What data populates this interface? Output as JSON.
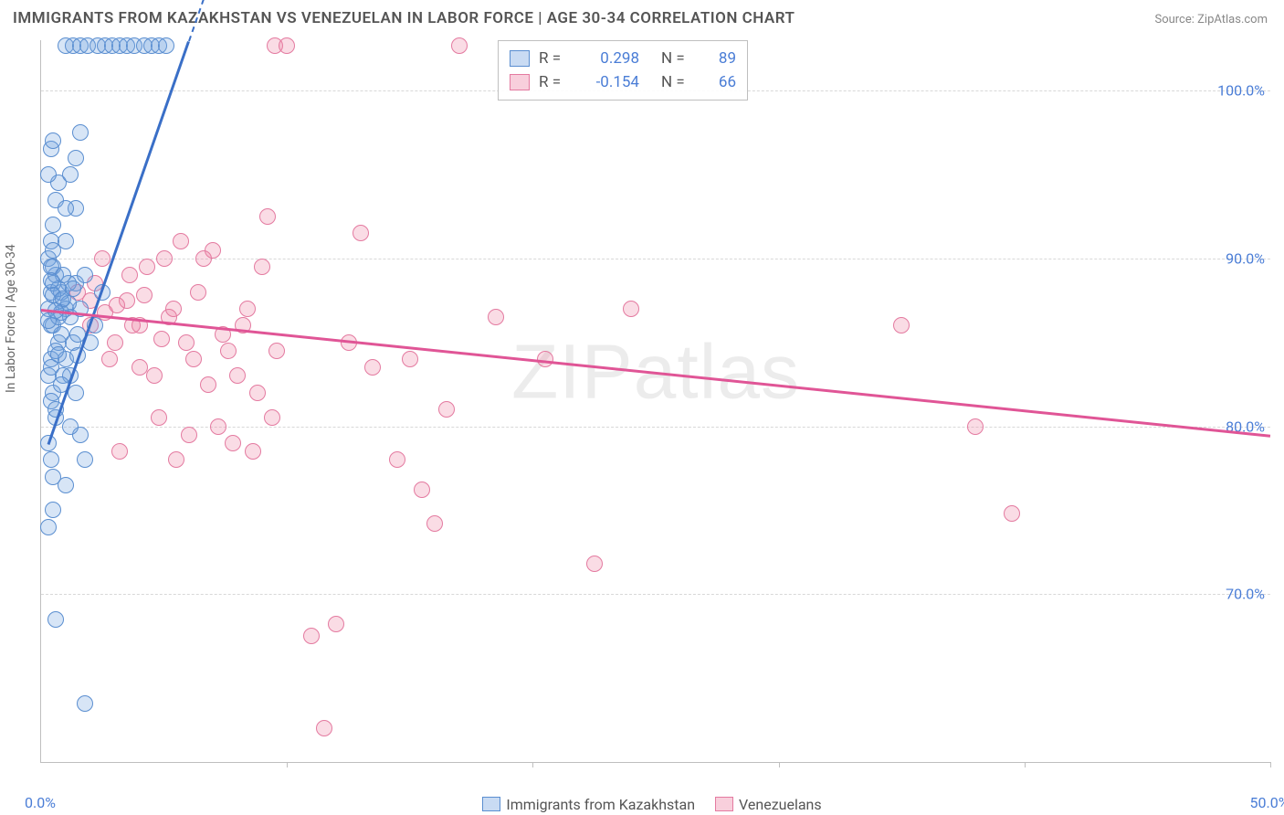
{
  "title": "IMMIGRANTS FROM KAZAKHSTAN VS VENEZUELAN IN LABOR FORCE | AGE 30-34 CORRELATION CHART",
  "source": "Source: ZipAtlas.com",
  "watermark": "ZIPatlas",
  "ylabel": "In Labor Force | Age 30-34",
  "chart": {
    "type": "scatter",
    "xlim": [
      0,
      50
    ],
    "ylim": [
      60,
      103
    ],
    "yticks": [
      70,
      80,
      90,
      100
    ],
    "ytick_labels": [
      "70.0%",
      "80.0%",
      "90.0%",
      "100.0%"
    ],
    "xticks": [
      0,
      10,
      20,
      30,
      40,
      50
    ],
    "xtick_labels_shown": {
      "0": "0.0%",
      "50": "50.0%"
    },
    "background_color": "#ffffff",
    "grid_color": "#d8d8d8",
    "series": {
      "kazakhstan": {
        "label": "Immigrants from Kazakhstan",
        "color_fill": "rgba(112,160,224,0.28)",
        "color_stroke": "#5a8ed0",
        "R": "0.298",
        "N": "89",
        "trend": {
          "x1": 0.3,
          "y1": 79,
          "x2": 6.0,
          "y2": 103,
          "color": "#3a6fc7"
        },
        "points": [
          [
            0.3,
            87
          ],
          [
            0.4,
            88
          ],
          [
            0.5,
            86
          ],
          [
            0.6,
            89
          ],
          [
            0.7,
            85
          ],
          [
            0.8,
            87.5
          ],
          [
            0.3,
            90
          ],
          [
            0.4,
            91
          ],
          [
            0.5,
            92
          ],
          [
            0.6,
            93.5
          ],
          [
            0.7,
            94.5
          ],
          [
            0.3,
            95
          ],
          [
            0.4,
            96.5
          ],
          [
            0.5,
            97
          ],
          [
            0.3,
            83
          ],
          [
            0.4,
            84
          ],
          [
            0.5,
            82
          ],
          [
            0.6,
            80.5
          ],
          [
            0.3,
            79
          ],
          [
            0.4,
            78
          ],
          [
            0.5,
            77
          ],
          [
            0.3,
            74
          ],
          [
            0.8,
            88
          ],
          [
            1.0,
            87
          ],
          [
            1.2,
            86.5
          ],
          [
            1.4,
            88.5
          ],
          [
            1.6,
            87
          ],
          [
            1.8,
            89
          ],
          [
            2.0,
            85
          ],
          [
            1.0,
            84
          ],
          [
            1.2,
            83
          ],
          [
            1.4,
            82
          ],
          [
            1.6,
            79.5
          ],
          [
            1.8,
            78
          ],
          [
            1.0,
            91
          ],
          [
            1.4,
            93
          ],
          [
            1.0,
            102.7
          ],
          [
            1.3,
            102.7
          ],
          [
            1.6,
            102.7
          ],
          [
            1.9,
            102.7
          ],
          [
            2.3,
            102.7
          ],
          [
            2.6,
            102.7
          ],
          [
            2.9,
            102.7
          ],
          [
            3.2,
            102.7
          ],
          [
            3.5,
            102.7
          ],
          [
            3.8,
            102.7
          ],
          [
            4.2,
            102.7
          ],
          [
            4.5,
            102.7
          ],
          [
            4.8,
            102.7
          ],
          [
            5.1,
            102.7
          ],
          [
            0.6,
            68.5
          ],
          [
            1.8,
            63.5
          ],
          [
            2.2,
            86
          ],
          [
            2.5,
            88
          ],
          [
            0.8,
            85.5
          ],
          [
            1.1,
            88.5
          ],
          [
            0.5,
            89.5
          ],
          [
            0.9,
            89
          ],
          [
            0.4,
            86
          ],
          [
            0.7,
            86.5
          ],
          [
            1.3,
            85
          ],
          [
            1.5,
            85.5
          ],
          [
            0.6,
            84.5
          ],
          [
            0.4,
            83.5
          ],
          [
            0.9,
            83
          ],
          [
            0.5,
            88.5
          ],
          [
            1.0,
            93
          ],
          [
            1.2,
            95
          ],
          [
            1.4,
            96
          ],
          [
            1.6,
            97.5
          ],
          [
            1.2,
            80
          ],
          [
            0.4,
            81.5
          ],
          [
            0.6,
            81
          ],
          [
            0.8,
            82.5
          ],
          [
            1.0,
            76.5
          ],
          [
            0.5,
            75
          ],
          [
            0.4,
            89.5
          ],
          [
            0.7,
            88.2
          ],
          [
            0.5,
            87.8
          ],
          [
            0.8,
            86.8
          ],
          [
            0.3,
            86.3
          ],
          [
            1.1,
            87.3
          ],
          [
            0.9,
            87.6
          ],
          [
            0.6,
            86.9
          ],
          [
            0.4,
            88.7
          ],
          [
            1.3,
            88.2
          ],
          [
            0.5,
            90.5
          ],
          [
            0.7,
            84.3
          ],
          [
            1.5,
            84.2
          ]
        ]
      },
      "venezuelans": {
        "label": "Venezuelans",
        "color_fill": "rgba(236,130,162,0.28)",
        "color_stroke": "#e47aa0",
        "R": "-0.154",
        "N": "66",
        "trend": {
          "x1": 0,
          "y1": 87,
          "x2": 50,
          "y2": 79.5,
          "color": "#e05596"
        },
        "points": [
          [
            1.5,
            88
          ],
          [
            2.0,
            86
          ],
          [
            2.5,
            90
          ],
          [
            3.0,
            85
          ],
          [
            3.5,
            87.5
          ],
          [
            4.0,
            83.5
          ],
          [
            4.3,
            89.5
          ],
          [
            4.8,
            80.5
          ],
          [
            5.2,
            86.5
          ],
          [
            5.7,
            91
          ],
          [
            6.0,
            79.5
          ],
          [
            6.4,
            88
          ],
          [
            6.8,
            82.5
          ],
          [
            7.0,
            90.5
          ],
          [
            7.4,
            85.5
          ],
          [
            7.8,
            79
          ],
          [
            8.0,
            83
          ],
          [
            8.4,
            87
          ],
          [
            8.8,
            82
          ],
          [
            9.2,
            92.5
          ],
          [
            9.6,
            84.5
          ],
          [
            9.5,
            102.7
          ],
          [
            10.0,
            102.7
          ],
          [
            11.0,
            67.5
          ],
          [
            11.5,
            62
          ],
          [
            12.0,
            68.2
          ],
          [
            12.5,
            85
          ],
          [
            13.0,
            91.5
          ],
          [
            13.5,
            83.5
          ],
          [
            14.5,
            78
          ],
          [
            15.0,
            84
          ],
          [
            15.5,
            76.2
          ],
          [
            16.0,
            74.2
          ],
          [
            16.5,
            81
          ],
          [
            17.0,
            102.7
          ],
          [
            18.5,
            86.5
          ],
          [
            20.5,
            84
          ],
          [
            22.5,
            71.8
          ],
          [
            24.0,
            87
          ],
          [
            35.0,
            86
          ],
          [
            38.0,
            80
          ],
          [
            39.5,
            74.8
          ],
          [
            2.2,
            88.5
          ],
          [
            2.8,
            84
          ],
          [
            3.2,
            78.5
          ],
          [
            3.6,
            89
          ],
          [
            4.0,
            86
          ],
          [
            4.6,
            83
          ],
          [
            5.0,
            90
          ],
          [
            5.5,
            78
          ],
          [
            5.9,
            85
          ],
          [
            6.2,
            84
          ],
          [
            6.6,
            90
          ],
          [
            7.2,
            80
          ],
          [
            7.6,
            84.5
          ],
          [
            8.2,
            86
          ],
          [
            8.6,
            78.5
          ],
          [
            9.0,
            89.5
          ],
          [
            9.4,
            80.5
          ],
          [
            2.0,
            87.5
          ],
          [
            2.6,
            86.8
          ],
          [
            3.1,
            87.2
          ],
          [
            3.7,
            86
          ],
          [
            4.2,
            87.8
          ],
          [
            4.9,
            85.2
          ],
          [
            5.4,
            87
          ]
        ]
      }
    }
  },
  "legend_inset": {
    "rows": [
      {
        "swatch_fill": "rgba(112,160,224,0.38)",
        "swatch_stroke": "#5a8ed0",
        "R_label": "R =",
        "R": "0.298",
        "N_label": "N =",
        "N": "89"
      },
      {
        "swatch_fill": "rgba(236,130,162,0.38)",
        "swatch_stroke": "#e47aa0",
        "R_label": "R =",
        "R": "-0.154",
        "N_label": "N =",
        "N": "66"
      }
    ]
  },
  "legend_bottom": {
    "items": [
      {
        "swatch_fill": "rgba(112,160,224,0.38)",
        "swatch_stroke": "#5a8ed0",
        "label": "Immigrants from Kazakhstan"
      },
      {
        "swatch_fill": "rgba(236,130,162,0.38)",
        "swatch_stroke": "#e47aa0",
        "label": "Venezuelans"
      }
    ]
  }
}
